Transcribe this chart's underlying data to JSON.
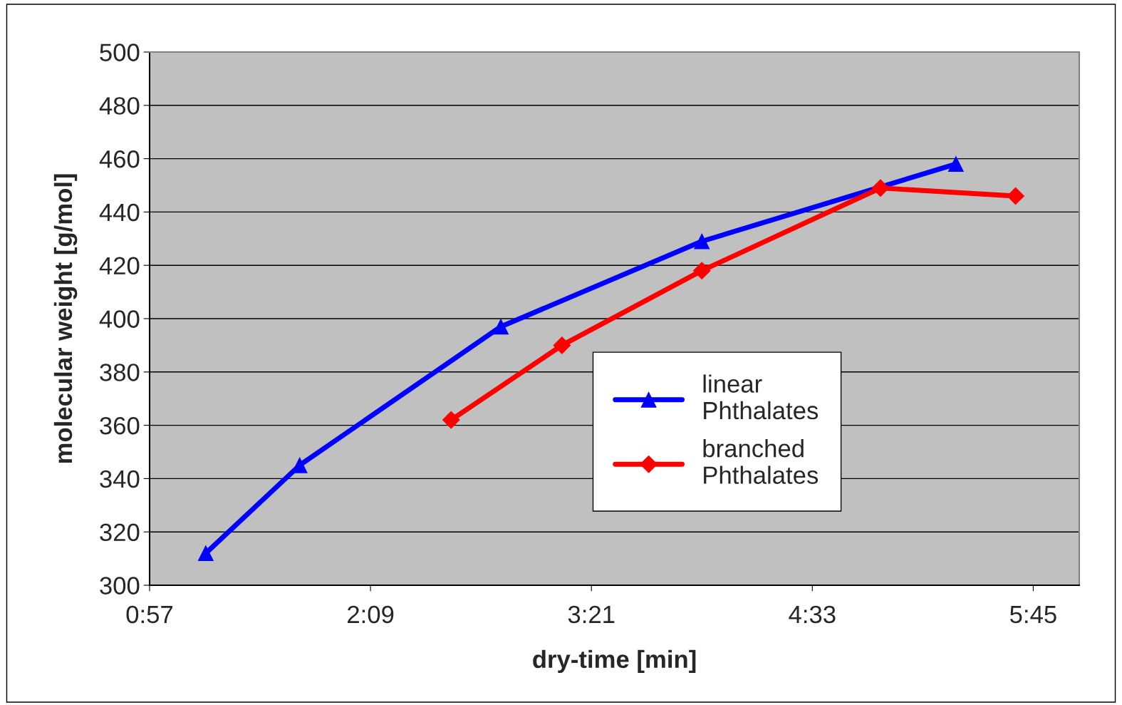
{
  "chart_data": {
    "type": "line",
    "xlabel": "dry-time [min]",
    "ylabel": "molecular weight [g/mol]",
    "series": [
      {
        "name": "linear\nPhthalates",
        "color": "#0000ff",
        "marker": "triangle",
        "x": [
          1.255,
          1.765,
          2.858,
          3.95,
          5.33
        ],
        "values": [
          312,
          345,
          397,
          429,
          458
        ]
      },
      {
        "name": "branched\nPhthalates",
        "color": "#ff0000",
        "marker": "diamond",
        "x": [
          2.588,
          3.19,
          3.95,
          4.92,
          5.654
        ],
        "values": [
          362,
          390,
          418,
          449,
          446
        ]
      }
    ],
    "xlim": [
      0.95,
      6.0
    ],
    "xticks": [
      {
        "value": 0.95,
        "label": "0:57"
      },
      {
        "value": 2.15,
        "label": "2:09"
      },
      {
        "value": 3.35,
        "label": "3:21"
      },
      {
        "value": 4.55,
        "label": "4:33"
      },
      {
        "value": 5.75,
        "label": "5:45"
      }
    ],
    "ylim": [
      300,
      500
    ],
    "yticks": [
      300,
      320,
      340,
      360,
      380,
      400,
      420,
      440,
      460,
      480,
      500
    ],
    "grid": "y",
    "legend": "bottom right",
    "line_style": "solid"
  }
}
